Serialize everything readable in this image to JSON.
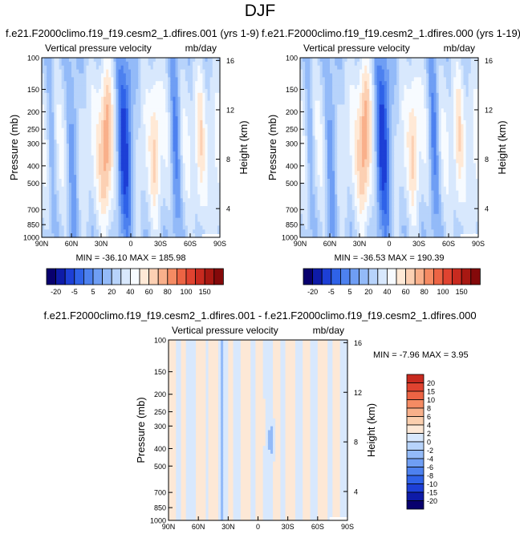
{
  "page": {
    "title": "DJF"
  },
  "palette_abs": [
    "#08006e",
    "#0e1ba8",
    "#1d3fd6",
    "#2f62e8",
    "#4d81ef",
    "#6f9ef4",
    "#93baf8",
    "#b7d3fb",
    "#d8e8fd",
    "#f7fbff",
    "#ffe9d6",
    "#fcd0b3",
    "#f9b08b",
    "#f58b63",
    "#ec6444",
    "#e04330",
    "#c82a1f",
    "#a81812",
    "#84090a"
  ],
  "palette_diff": [
    "#08006e",
    "#0e1ba8",
    "#1d3fd6",
    "#2f62e8",
    "#4d81ef",
    "#6f9ef4",
    "#93baf8",
    "#b7d3fb",
    "#d8e8fd",
    "#fde8d6",
    "#fbcfae",
    "#f8b08a",
    "#f58b63",
    "#ec6444",
    "#e04330",
    "#c82a1f",
    "#84090a"
  ],
  "chart_data": [
    {
      "type": "heatmap",
      "title": "f.e21.F2000climo.f19_f19.cesm2_1.dfires.001 (yrs 1-9)",
      "subtitle_left": "Vertical pressure velocity",
      "subtitle_right": "mb/day",
      "ylabel": "Pressure (mb)",
      "ylabel_right": "Height (km)",
      "x_ticks": [
        "90N",
        "60N",
        "30N",
        "0",
        "30S",
        "60S",
        "90S"
      ],
      "y_ticks": [
        "100",
        "150",
        "200",
        "250",
        "300",
        "400",
        "500",
        "700",
        "850",
        "1000"
      ],
      "y_ticks_right": [
        "16",
        "12",
        "8",
        "4"
      ],
      "stats": "MIN = -36.10  MAX = 185.98",
      "min": -36.1,
      "max": 185.98,
      "colorbar_labels": [
        "-20",
        "-5",
        "5",
        "20",
        "40",
        "60",
        "80",
        "100",
        "150"
      ]
    },
    {
      "type": "heatmap",
      "title": "f.e21.F2000climo.f19_f19.cesm2_1.dfires.000 (yrs 1-19)",
      "subtitle_left": "Vertical pressure velocity",
      "subtitle_right": "mb/day",
      "ylabel": "Pressure (mb)",
      "ylabel_right": "Height (km)",
      "x_ticks": [
        "90N",
        "60N",
        "30N",
        "0",
        "30S",
        "60S",
        "90S"
      ],
      "y_ticks": [
        "100",
        "150",
        "200",
        "250",
        "300",
        "400",
        "500",
        "700",
        "850",
        "1000"
      ],
      "y_ticks_right": [
        "16",
        "12",
        "8",
        "4"
      ],
      "stats": "MIN = -36.53  MAX = 190.39",
      "min": -36.53,
      "max": 190.39,
      "colorbar_labels": [
        "-20",
        "-5",
        "5",
        "20",
        "40",
        "60",
        "80",
        "100",
        "150"
      ]
    },
    {
      "type": "heatmap",
      "title": "f.e21.F2000climo.f19_f19.cesm2_1.dfires.001 - f.e21.F2000climo.f19_f19.cesm2_1.dfires.000",
      "subtitle_left": "Vertical pressure velocity",
      "subtitle_right": "mb/day",
      "ylabel": "Pressure (mb)",
      "ylabel_right": "Height (km)",
      "x_ticks": [
        "90N",
        "60N",
        "30N",
        "0",
        "30S",
        "60S",
        "90S"
      ],
      "y_ticks": [
        "100",
        "150",
        "200",
        "250",
        "300",
        "400",
        "500",
        "700",
        "850",
        "1000"
      ],
      "y_ticks_right": [
        "16",
        "12",
        "8",
        "4"
      ],
      "stats": "MIN = -7.96  MAX =  3.95",
      "min": -7.96,
      "max": 3.95,
      "colorbar_labels": [
        "20",
        "15",
        "10",
        "8",
        "6",
        "4",
        "2",
        "0",
        "-2",
        "-4",
        "-6",
        "-8",
        "-10",
        "-15",
        "-20"
      ]
    }
  ]
}
